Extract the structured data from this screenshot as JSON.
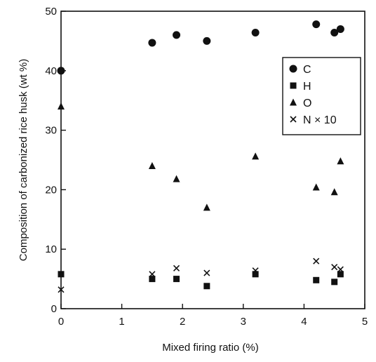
{
  "chart_data": {
    "type": "scatter",
    "xlabel": "Mixed firing ratio (%)",
    "ylabel": "Composition of carbonized rice husk (wt %)",
    "xlim": [
      0,
      5
    ],
    "ylim": [
      0,
      50
    ],
    "xticks": [
      0,
      1,
      2,
      3,
      4,
      5
    ],
    "yticks": [
      0,
      10,
      20,
      30,
      40,
      50
    ],
    "xtick_labels": [
      "0",
      "1",
      "2",
      "3",
      "4",
      "5"
    ],
    "ytick_labels": [
      "0",
      "10",
      "20",
      "30",
      "40",
      "50"
    ],
    "grid": false,
    "legend_position": "top-right",
    "series": [
      {
        "name": "C",
        "marker": "circle",
        "points": [
          {
            "x": 0,
            "y": 40.0
          },
          {
            "x": 1.5,
            "y": 44.7
          },
          {
            "x": 1.9,
            "y": 46.0
          },
          {
            "x": 2.4,
            "y": 45.0
          },
          {
            "x": 3.2,
            "y": 46.4
          },
          {
            "x": 4.2,
            "y": 47.8
          },
          {
            "x": 4.5,
            "y": 46.4
          },
          {
            "x": 4.6,
            "y": 47.0
          }
        ]
      },
      {
        "name": "H",
        "marker": "square",
        "points": [
          {
            "x": 0,
            "y": 5.8
          },
          {
            "x": 1.5,
            "y": 5.0
          },
          {
            "x": 1.9,
            "y": 5.0
          },
          {
            "x": 2.4,
            "y": 3.8
          },
          {
            "x": 3.2,
            "y": 5.8
          },
          {
            "x": 4.2,
            "y": 4.8
          },
          {
            "x": 4.5,
            "y": 4.5
          },
          {
            "x": 4.6,
            "y": 5.8
          }
        ]
      },
      {
        "name": "O",
        "marker": "triangle",
        "points": [
          {
            "x": 0,
            "y": 34.0
          },
          {
            "x": 1.5,
            "y": 24.0
          },
          {
            "x": 1.9,
            "y": 21.8
          },
          {
            "x": 2.4,
            "y": 17.0
          },
          {
            "x": 3.2,
            "y": 25.6
          },
          {
            "x": 4.2,
            "y": 20.4
          },
          {
            "x": 4.5,
            "y": 19.6
          },
          {
            "x": 4.6,
            "y": 24.8
          }
        ]
      },
      {
        "name": "N × 10",
        "marker": "cross",
        "points": [
          {
            "x": 0,
            "y": 3.2
          },
          {
            "x": 1.5,
            "y": 5.8
          },
          {
            "x": 1.9,
            "y": 6.8
          },
          {
            "x": 2.4,
            "y": 6.0
          },
          {
            "x": 3.2,
            "y": 6.4
          },
          {
            "x": 4.2,
            "y": 8.0
          },
          {
            "x": 4.5,
            "y": 7.0
          },
          {
            "x": 4.6,
            "y": 6.6
          }
        ]
      }
    ]
  }
}
